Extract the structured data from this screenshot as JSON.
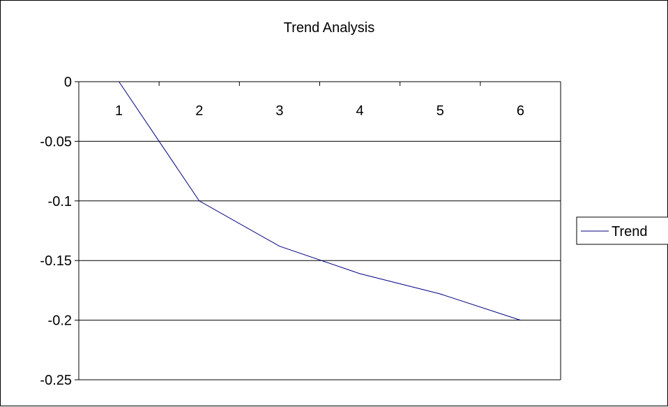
{
  "chart_data": {
    "type": "line",
    "title": "Trend Analysis",
    "xlabel": "",
    "ylabel": "",
    "categories": [
      "1",
      "2",
      "3",
      "4",
      "5",
      "6"
    ],
    "series": [
      {
        "name": "Trend",
        "values": [
          0,
          -0.1,
          -0.138,
          -0.161,
          -0.178,
          -0.2
        ],
        "color": "#000080"
      }
    ],
    "ylim": [
      -0.25,
      0
    ],
    "yticks": [
      "0",
      "-0.05",
      "-0.1",
      "-0.15",
      "-0.2",
      "-0.25"
    ],
    "grid": true,
    "legend_position": "right"
  }
}
